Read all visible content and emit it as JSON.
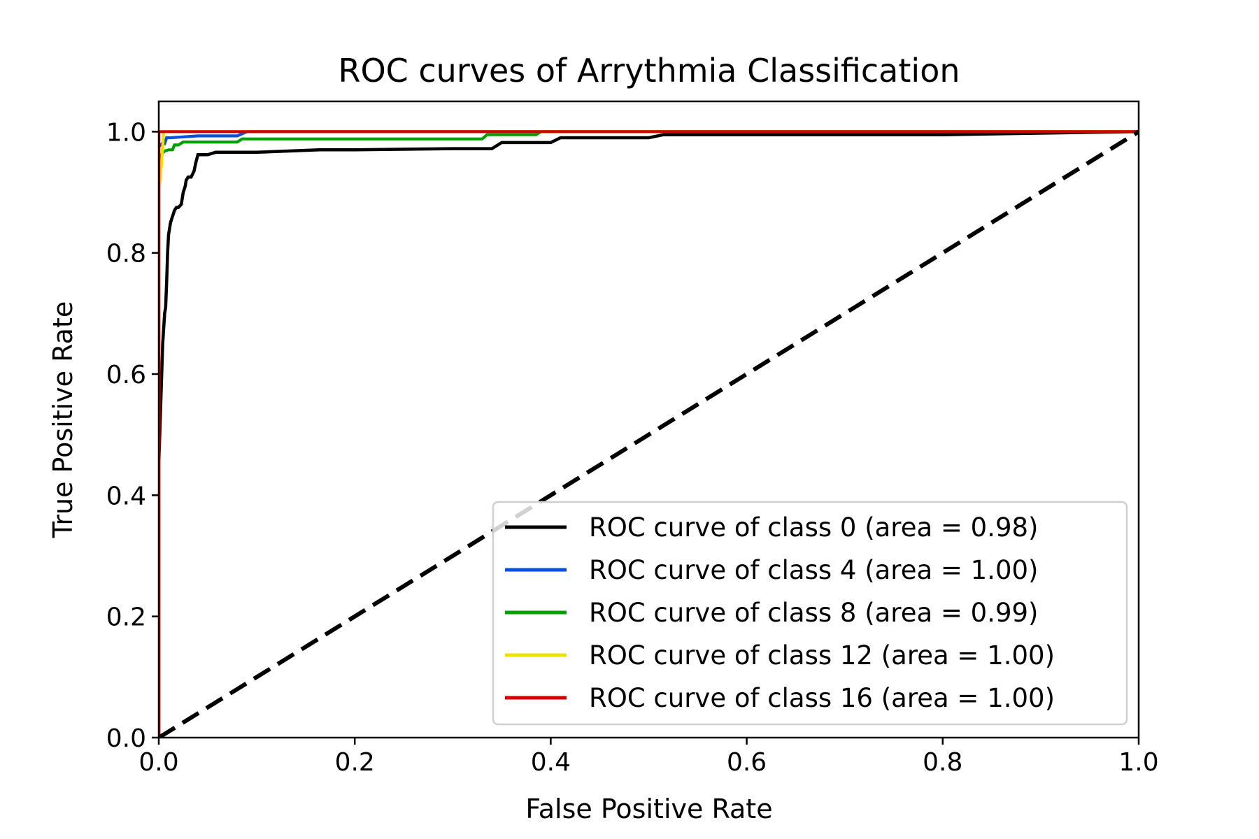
{
  "chart_data": {
    "type": "line",
    "title": "ROC curves of Arrythmia Classification",
    "xlabel": "False Positive Rate",
    "ylabel": "True Positive Rate",
    "xlim": [
      0.0,
      1.0
    ],
    "ylim": [
      0.0,
      1.05
    ],
    "xticks": [
      "0.0",
      "0.2",
      "0.4",
      "0.6",
      "0.8",
      "1.0"
    ],
    "yticks": [
      "0.0",
      "0.2",
      "0.4",
      "0.6",
      "0.8",
      "1.0"
    ],
    "grid": false,
    "legend_position": "lower-right",
    "series": [
      {
        "name": "ROC curve of class 0 (area = 0.98)",
        "color": "#000000",
        "x": [
          0.0,
          0.0,
          0.002,
          0.003,
          0.004,
          0.006,
          0.007,
          0.008,
          0.009,
          0.01,
          0.011,
          0.012,
          0.014,
          0.016,
          0.018,
          0.02,
          0.023,
          0.025,
          0.027,
          0.028,
          0.03,
          0.033,
          0.036,
          0.038,
          0.04,
          0.046,
          0.05,
          0.058,
          0.1,
          0.164,
          0.2,
          0.3,
          0.34,
          0.35,
          0.4,
          0.41,
          0.5,
          0.515,
          0.6,
          0.8,
          1.0
        ],
        "y": [
          0.0,
          0.45,
          0.55,
          0.6,
          0.65,
          0.7,
          0.71,
          0.75,
          0.8,
          0.83,
          0.84,
          0.85,
          0.86,
          0.87,
          0.875,
          0.875,
          0.88,
          0.9,
          0.91,
          0.92,
          0.925,
          0.925,
          0.935,
          0.95,
          0.962,
          0.962,
          0.962,
          0.966,
          0.966,
          0.97,
          0.97,
          0.972,
          0.972,
          0.982,
          0.982,
          0.99,
          0.99,
          0.995,
          0.995,
          0.995,
          1.0
        ]
      },
      {
        "name": "ROC curve of class 4 (area = 1.00)",
        "color": "#0a50d8",
        "x": [
          0.0,
          0.0,
          0.003,
          0.006,
          0.008,
          0.012,
          0.04,
          0.08,
          0.09,
          0.1,
          1.0
        ],
        "y": [
          0.0,
          0.975,
          0.98,
          0.98,
          0.99,
          0.99,
          0.993,
          0.993,
          1.0,
          1.0,
          1.0
        ]
      },
      {
        "name": "ROC curve of class 8 (area = 0.99)",
        "color": "#00a000",
        "x": [
          0.0,
          0.0,
          0.002,
          0.004,
          0.006,
          0.01,
          0.014,
          0.016,
          0.02,
          0.025,
          0.05,
          0.08,
          0.085,
          0.2,
          0.33,
          0.335,
          0.385,
          0.39,
          1.0
        ],
        "y": [
          0.0,
          0.95,
          0.96,
          0.965,
          0.968,
          0.97,
          0.97,
          0.978,
          0.978,
          0.983,
          0.983,
          0.983,
          0.988,
          0.988,
          0.988,
          0.995,
          0.995,
          1.0,
          1.0
        ]
      },
      {
        "name": "ROC curve of class 12 (area = 1.00)",
        "color": "#f0e000",
        "x": [
          0.0,
          0.0,
          0.003,
          0.005,
          1.0
        ],
        "y": [
          0.0,
          0.9,
          0.95,
          1.0,
          1.0
        ]
      },
      {
        "name": "ROC curve of class 16 (area = 1.00)",
        "color": "#d40000",
        "x": [
          0.0,
          0.0,
          0.0,
          1.0
        ],
        "y": [
          0.0,
          0.98,
          1.0,
          1.0
        ]
      }
    ],
    "reference_line": {
      "style": "dashed",
      "color": "#000000",
      "x": [
        0.0,
        1.0
      ],
      "y": [
        0.0,
        1.0
      ]
    }
  }
}
